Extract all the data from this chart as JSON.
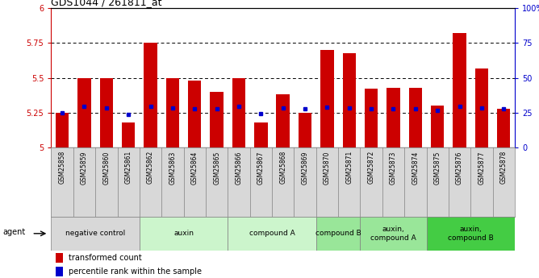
{
  "title": "GDS1044 / 261811_at",
  "samples": [
    "GSM25858",
    "GSM25859",
    "GSM25860",
    "GSM25861",
    "GSM25862",
    "GSM25863",
    "GSM25864",
    "GSM25865",
    "GSM25866",
    "GSM25867",
    "GSM25868",
    "GSM25869",
    "GSM25870",
    "GSM25871",
    "GSM25872",
    "GSM25873",
    "GSM25874",
    "GSM25875",
    "GSM25876",
    "GSM25877",
    "GSM25878"
  ],
  "bar_values": [
    5.25,
    5.5,
    5.5,
    5.18,
    5.75,
    5.5,
    5.48,
    5.4,
    5.5,
    5.18,
    5.38,
    5.25,
    5.7,
    5.68,
    5.42,
    5.43,
    5.43,
    5.3,
    5.82,
    5.57,
    5.28
  ],
  "percentile_values": [
    5.25,
    5.295,
    5.285,
    5.235,
    5.295,
    5.285,
    5.278,
    5.278,
    5.295,
    5.245,
    5.285,
    5.278,
    5.288,
    5.285,
    5.278,
    5.278,
    5.278,
    5.265,
    5.295,
    5.285,
    5.275
  ],
  "groups": [
    {
      "label": "negative control",
      "start": 0,
      "end": 3,
      "color": "#d8d8d8"
    },
    {
      "label": "auxin",
      "start": 4,
      "end": 7,
      "color": "#ccf5cc"
    },
    {
      "label": "compound A",
      "start": 8,
      "end": 11,
      "color": "#ccf5cc"
    },
    {
      "label": "compound B",
      "start": 12,
      "end": 13,
      "color": "#99e699"
    },
    {
      "label": "auxin,\ncompound A",
      "start": 14,
      "end": 16,
      "color": "#99e699"
    },
    {
      "label": "auxin,\ncompound B",
      "start": 17,
      "end": 20,
      "color": "#44cc44"
    }
  ],
  "ylim": [
    5.0,
    6.0
  ],
  "yticks": [
    5.0,
    5.25,
    5.5,
    5.75,
    6.0
  ],
  "yticklabels": [
    "5",
    "5.25",
    "5.5",
    "5.75",
    "6"
  ],
  "right_yticks": [
    0,
    25,
    50,
    75,
    100
  ],
  "right_yticklabels": [
    "0",
    "25",
    "50",
    "75",
    "100%"
  ],
  "bar_color": "#cc0000",
  "dot_color": "#0000cc",
  "bar_bottom": 5.0,
  "xlabels_bg": "#d8d8d8",
  "plot_bg": "#ffffff"
}
